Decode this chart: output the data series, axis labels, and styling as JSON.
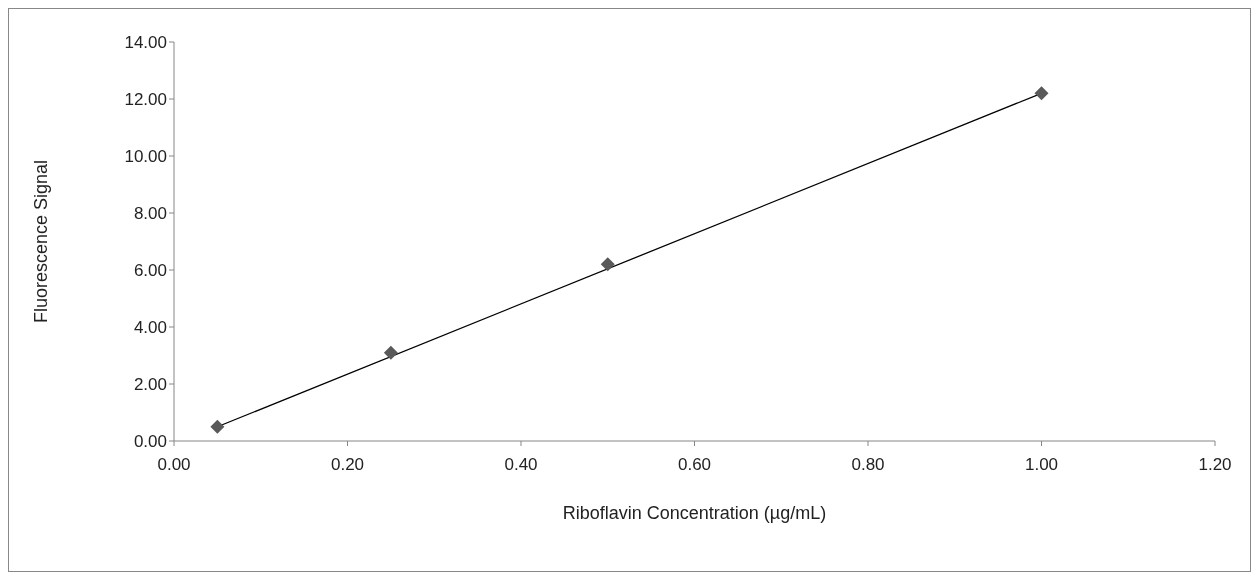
{
  "chart_data": {
    "type": "scatter",
    "xlabel": "Riboflavin Concentration (µg/mL)",
    "ylabel": "Fluorescence Signal",
    "x": [
      0.05,
      0.25,
      0.5,
      1.0
    ],
    "series": [
      {
        "type": "scatter",
        "color": "#595959",
        "values": [
          0.5,
          3.1,
          6.2,
          12.2
        ],
        "marker": "diamond"
      },
      {
        "type": "line",
        "color": "#000000",
        "x": [
          0.05,
          1.0
        ],
        "values": [
          0.5,
          12.2
        ],
        "marker": "none",
        "line_style": "solid"
      }
    ],
    "xlim": [
      0,
      1.2
    ],
    "xticks": [
      {
        "value": 0,
        "label": "0.00"
      },
      {
        "value": 0.2,
        "label": "0.20"
      },
      {
        "value": 0.4,
        "label": "0.40"
      },
      {
        "value": 0.6,
        "label": "0.60"
      },
      {
        "value": 0.8,
        "label": "0.80"
      },
      {
        "value": 1.0,
        "label": "1.00"
      },
      {
        "value": 1.2,
        "label": "1.20"
      }
    ],
    "ylim": [
      0,
      14
    ],
    "yticks": [
      {
        "value": 0,
        "label": "0.00"
      },
      {
        "value": 2,
        "label": "2.00"
      },
      {
        "value": 4,
        "label": "4.00"
      },
      {
        "value": 6,
        "label": "6.00"
      },
      {
        "value": 8,
        "label": "8.00"
      },
      {
        "value": 10,
        "label": "10.00"
      },
      {
        "value": 12,
        "label": "12.00"
      },
      {
        "value": 14,
        "label": "14.00"
      }
    ],
    "grid": false,
    "legend": false
  }
}
